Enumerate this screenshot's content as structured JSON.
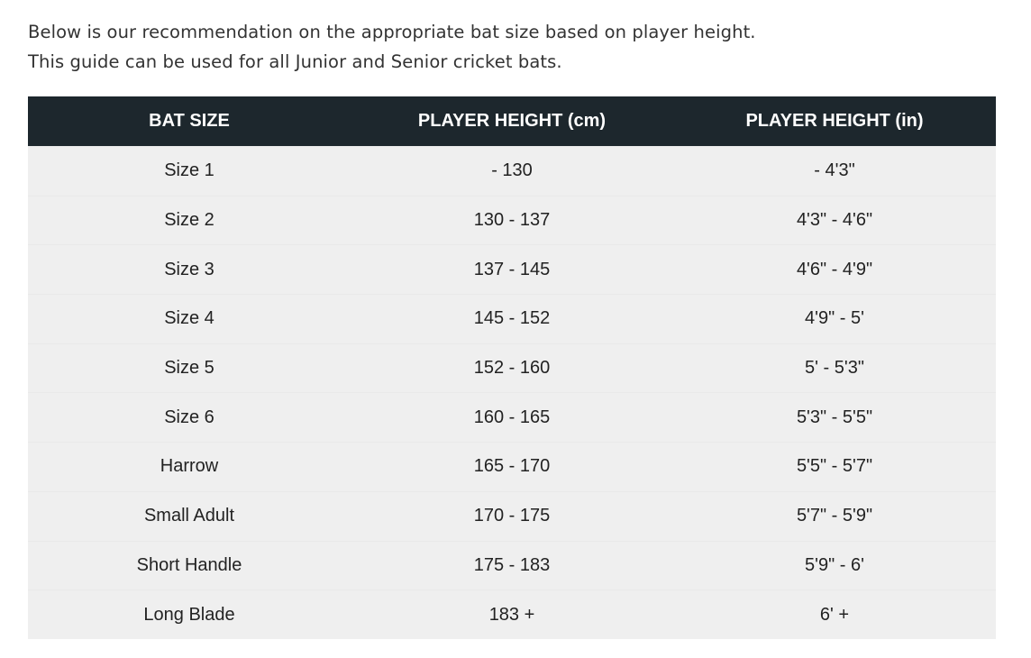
{
  "intro": {
    "line1": "Below is our recommendation on the appropriate bat size based on player height.",
    "line2": "This guide can be used for all Junior and Senior cricket bats."
  },
  "table": {
    "headers": [
      "BAT SIZE",
      "PLAYER HEIGHT (cm)",
      "PLAYER HEIGHT (in)"
    ],
    "rows": [
      [
        "Size 1",
        "- 130",
        "- 4'3\""
      ],
      [
        "Size 2",
        "130 - 137",
        "4'3\" - 4'6\""
      ],
      [
        "Size 3",
        "137 - 145",
        "4'6\" - 4'9\""
      ],
      [
        "Size 4",
        "145 - 152",
        "4'9\" - 5'"
      ],
      [
        "Size 5",
        "152 - 160",
        "5' - 5'3\""
      ],
      [
        "Size 6",
        "160 - 165",
        "5'3\" - 5'5\""
      ],
      [
        "Harrow",
        "165 - 170",
        "5'5\" - 5'7\""
      ],
      [
        "Small Adult",
        "170 - 175",
        "5'7\" - 5'9\""
      ],
      [
        "Short Handle",
        "175 - 183",
        "5'9\" - 6'"
      ],
      [
        "Long Blade",
        "183 +",
        "6' +"
      ]
    ]
  },
  "colors": {
    "header_bg": "#1d272d",
    "row_bg": "#efefef"
  }
}
